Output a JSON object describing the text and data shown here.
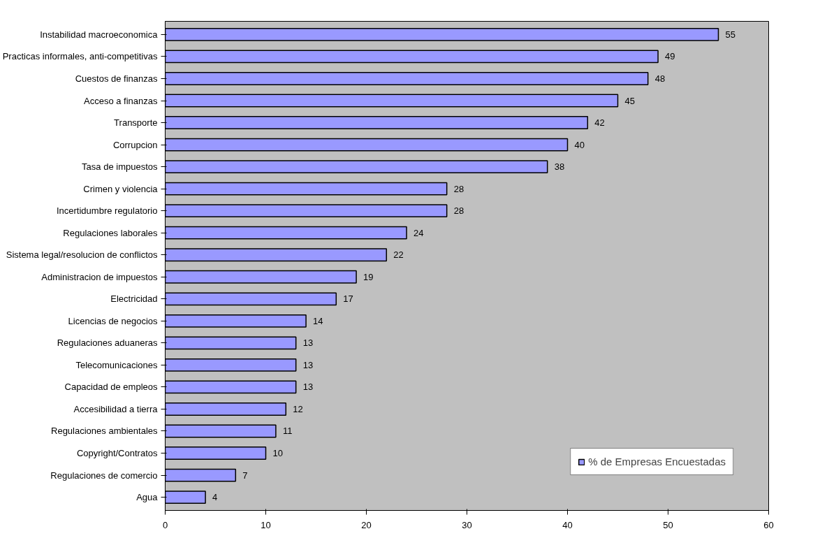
{
  "chart_data": {
    "type": "bar",
    "orientation": "horizontal",
    "categories": [
      "Instabilidad macroeconomica",
      "Practicas informales, anti-competitivas",
      "Cuestos de finanzas",
      "Acceso a finanzas",
      "Transporte",
      "Corrupcion",
      "Tasa de impuestos",
      "Crimen y violencia",
      "Incertidumbre regulatorio",
      "Regulaciones laborales",
      "Sistema legal/resolucion de conflictos",
      "Administracion de impuestos",
      "Electricidad",
      "Licencias de negocios",
      "Regulaciones aduaneras",
      "Telecomunicaciones",
      "Capacidad de empleos",
      "Accesibilidad a tierra",
      "Regulaciones ambientales",
      "Copyright/Contratos",
      "Regulaciones de comercio",
      "Agua"
    ],
    "series": [
      {
        "name": "% de Empresas Encuestadas",
        "color": "#9999ff",
        "values": [
          55,
          49,
          48,
          45,
          42,
          40,
          38,
          28,
          28,
          24,
          22,
          19,
          17,
          14,
          13,
          13,
          13,
          12,
          11,
          10,
          7,
          4
        ]
      }
    ],
    "xlim": [
      0,
      60
    ],
    "xticks": [
      0,
      10,
      20,
      30,
      40,
      50,
      60
    ],
    "data_labels": true,
    "grid": false,
    "legend": "bottom right"
  }
}
